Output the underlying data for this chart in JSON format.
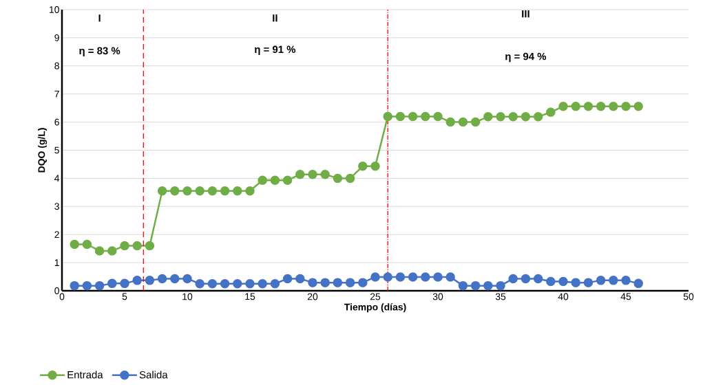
{
  "chart_data": {
    "type": "line",
    "xlabel": "Tiempo (días)",
    "ylabel": "DQO (g/L)",
    "xlim": [
      0,
      50
    ],
    "xticks": [
      0,
      5,
      10,
      15,
      20,
      25,
      30,
      35,
      40,
      45,
      50
    ],
    "ylim": [
      0,
      10
    ],
    "yticks": [
      0,
      1,
      2,
      3,
      4,
      5,
      6,
      7,
      8,
      9,
      10
    ],
    "x": [
      1,
      2,
      3,
      4,
      5,
      6,
      7,
      8,
      9,
      10,
      11,
      12,
      13,
      14,
      15,
      16,
      17,
      18,
      19,
      20,
      21,
      22,
      23,
      24,
      25,
      26,
      27,
      28,
      29,
      30,
      31,
      32,
      33,
      34,
      35,
      36,
      37,
      38,
      39,
      40,
      41,
      42,
      43,
      44,
      45,
      46
    ],
    "series": [
      {
        "name": "Entrada",
        "color": "#70ad47",
        "values": [
          1.65,
          1.65,
          1.42,
          1.42,
          1.6,
          1.6,
          1.6,
          3.55,
          3.55,
          3.55,
          3.55,
          3.55,
          3.55,
          3.55,
          3.55,
          3.93,
          3.93,
          3.93,
          4.14,
          4.14,
          4.14,
          4.0,
          4.0,
          4.43,
          4.43,
          6.2,
          6.2,
          6.2,
          6.2,
          6.2,
          6.0,
          6.0,
          6.0,
          6.19,
          6.19,
          6.19,
          6.19,
          6.19,
          6.35,
          6.56,
          6.56,
          6.56,
          6.56,
          6.56,
          6.56,
          6.56
        ]
      },
      {
        "name": "Salida",
        "color": "#4472c4",
        "values": [
          0.18,
          0.18,
          0.18,
          0.26,
          0.26,
          0.37,
          0.37,
          0.43,
          0.43,
          0.43,
          0.25,
          0.25,
          0.25,
          0.25,
          0.25,
          0.25,
          0.25,
          0.43,
          0.43,
          0.29,
          0.29,
          0.29,
          0.29,
          0.29,
          0.49,
          0.49,
          0.49,
          0.49,
          0.49,
          0.49,
          0.49,
          0.18,
          0.18,
          0.18,
          0.18,
          0.43,
          0.43,
          0.43,
          0.33,
          0.33,
          0.29,
          0.29,
          0.37,
          0.37,
          0.37,
          0.26
        ]
      }
    ],
    "ref_lines": [
      {
        "axis": "x",
        "value": 6.5,
        "color": "#ff0000",
        "line_style": "dashed"
      },
      {
        "axis": "x",
        "value": 26,
        "color": "#ff0000",
        "line_style": "dashdot"
      }
    ],
    "annotations": [
      "I",
      "II",
      "III",
      "η = 83 %",
      "η =  91 %",
      "η =  94 %"
    ],
    "grid": "y",
    "legend": "bottom left",
    "marker": "circle",
    "line_style": "solid"
  }
}
